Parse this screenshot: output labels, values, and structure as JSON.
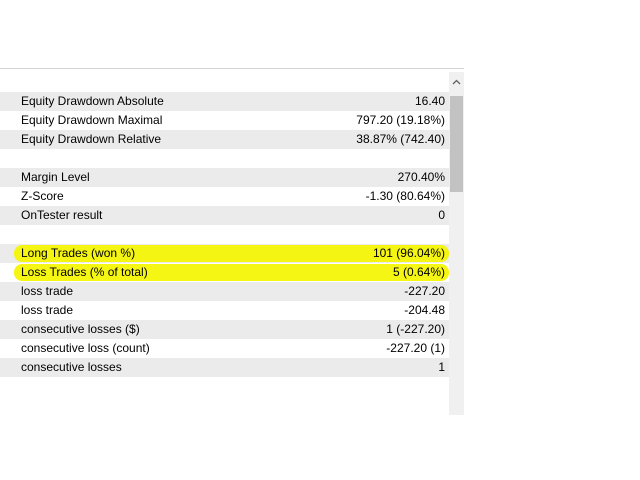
{
  "scrollbar": {
    "up_icon": "chevron-up-icon",
    "thumb_color": "#c2c2c2",
    "track_color": "#f0f0f0"
  },
  "highlight_color": "#f5f500",
  "row_shade_color": "#ebebeb",
  "rows": [
    {
      "label": "Equity Drawdown Absolute",
      "value": "16.40"
    },
    {
      "label": "Equity Drawdown Maximal",
      "value": "797.20 (19.18%)"
    },
    {
      "label": "Equity Drawdown Relative",
      "value": "38.87% (742.40)"
    },
    {
      "label": "",
      "value": ""
    },
    {
      "label": "Margin Level",
      "value": "270.40%"
    },
    {
      "label": "Z-Score",
      "value": "-1.30 (80.64%)"
    },
    {
      "label": "OnTester result",
      "value": "0"
    },
    {
      "label": "",
      "value": ""
    },
    {
      "label": "Long Trades (won %)",
      "value": "101 (96.04%)"
    },
    {
      "label": "Loss Trades (% of total)",
      "value": "5 (0.64%)"
    },
    {
      "label": "loss trade",
      "value": "-227.20"
    },
    {
      "label": "loss trade",
      "value": "-204.48"
    },
    {
      "label": "consecutive losses ($)",
      "value": "1 (-227.20)"
    },
    {
      "label": "consecutive loss (count)",
      "value": "-227.20 (1)"
    },
    {
      "label": "consecutive losses",
      "value": "1"
    },
    {
      "label": "",
      "value": ""
    }
  ]
}
